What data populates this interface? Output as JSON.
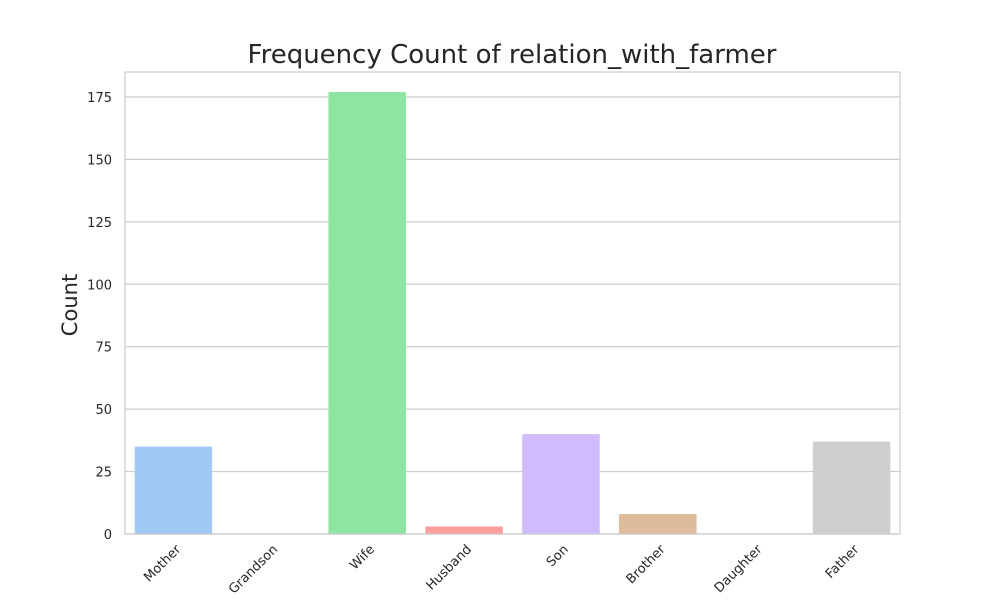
{
  "chart_data": {
    "type": "bar",
    "title": "Frequency Count of relation_with_farmer",
    "xlabel": "",
    "ylabel": "Count",
    "categories": [
      "Mother",
      "Grandson",
      "Wife",
      "Husband",
      "Son",
      "Brother",
      "Daughter",
      "Father"
    ],
    "values": [
      35,
      0,
      177,
      3,
      40,
      8,
      0,
      37
    ],
    "colors": [
      "#a1c9f4",
      "#ffb482",
      "#8de5a1",
      "#ff9f9b",
      "#d0bbff",
      "#debb9b",
      "#fab0e4",
      "#cfcfcf"
    ],
    "ylim": [
      0,
      185
    ],
    "yticks": [
      0,
      25,
      50,
      75,
      100,
      125,
      150,
      175
    ],
    "grid": true,
    "grid_color": "#cccccc",
    "frame_color": "#cccccc"
  }
}
